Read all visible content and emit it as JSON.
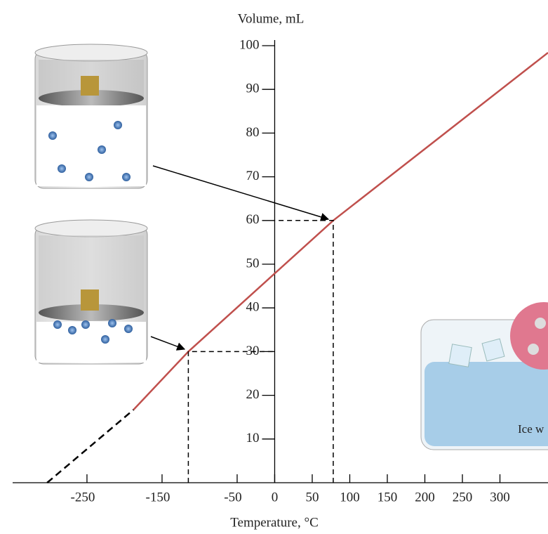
{
  "chart_data": {
    "type": "line",
    "title": "Volume, mL",
    "x_label": "Temperature, °C",
    "xlim": [
      -349,
      364
    ],
    "ylim": [
      0,
      100
    ],
    "xticks": [
      -250,
      -150,
      -50,
      0,
      50,
      100,
      150,
      200,
      250,
      300
    ],
    "yticks": [
      10,
      20,
      30,
      40,
      50,
      60,
      70,
      80,
      90,
      100
    ],
    "series": [
      {
        "color": "#000000",
        "style": "dashed",
        "x": [
          -303,
          -188
        ],
        "values": [
          0,
          16.7
        ]
      },
      {
        "color": "#c0504d",
        "style": "solid",
        "x": [
          -188,
          -115,
          78,
          364
        ],
        "values": [
          16.7,
          30,
          60,
          98.4
        ]
      }
    ],
    "points": {
      "x": [
        -115,
        78
      ],
      "values": [
        30,
        60
      ]
    },
    "annotations": [
      "Ice w"
    ]
  }
}
